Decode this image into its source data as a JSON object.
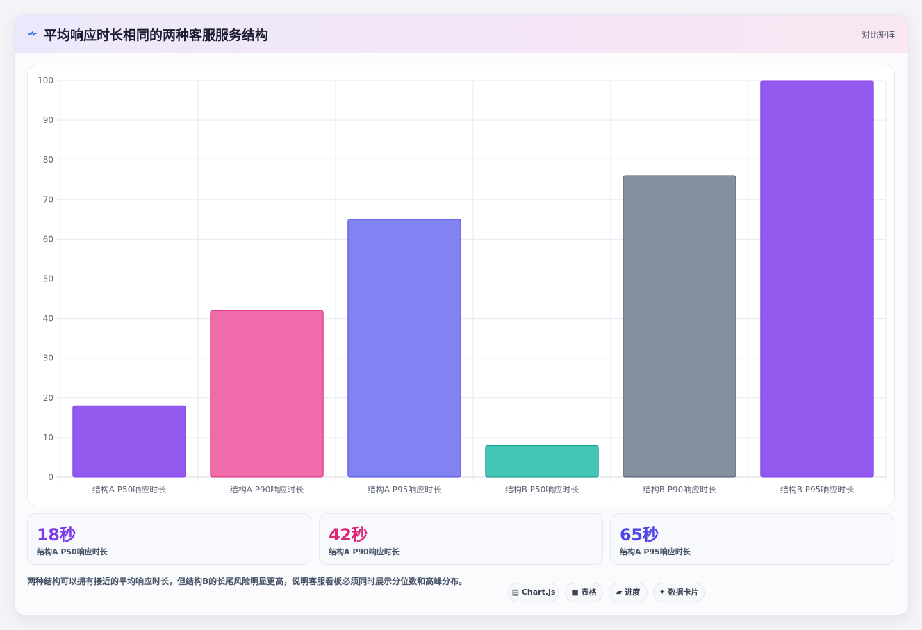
{
  "header": {
    "title": "平均响应时长相同的两种客服服务结构",
    "mode_label": "对比矩阵"
  },
  "chart_data": {
    "type": "bar",
    "categories": [
      "结构A P50响应时长",
      "结构A P90响应时长",
      "结构A P95响应时长",
      "结构B P50响应时长",
      "结构B P90响应时长",
      "结构B P95响应时长"
    ],
    "values": [
      18,
      42,
      65,
      8,
      76,
      100
    ],
    "colors": [
      "#9359ee",
      "#f06baa",
      "#8183f2",
      "#44c6b7",
      "#84909f",
      "#9359ee"
    ],
    "border_colors": [
      "#7c3aed",
      "#db2777",
      "#4f46e5",
      "#0d9488",
      "#475569",
      "#7c3aed"
    ],
    "ylim": [
      0,
      100
    ],
    "yticks": [
      0,
      10,
      20,
      30,
      40,
      50,
      60,
      70,
      80,
      90,
      100
    ],
    "grid": true,
    "legend": "none"
  },
  "kpis": [
    {
      "value": "18秒",
      "label": "结构A P50响应时长",
      "color": "#7c3aed"
    },
    {
      "value": "42秒",
      "label": "结构A P90响应时长",
      "color": "#db2777"
    },
    {
      "value": "65秒",
      "label": "结构A P95响应时长",
      "color": "#4f46e5"
    }
  ],
  "note": "两种结构可以拥有接近的平均响应时长，但结构B的长尾风险明显更高，说明客服看板必须同时展示分位数和高峰分布。",
  "tags": [
    {
      "icon": "chart-icon",
      "label": "Chart.js",
      "glyph": "▤"
    },
    {
      "icon": "table-icon",
      "label": "表格",
      "glyph": "■"
    },
    {
      "icon": "progress-icon",
      "label": "进度",
      "glyph": "▰"
    },
    {
      "icon": "sparkle-icon",
      "label": "数据卡片",
      "glyph": "✦"
    }
  ]
}
